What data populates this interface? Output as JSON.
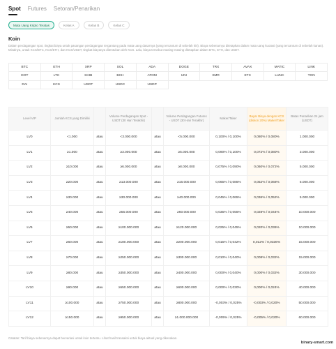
{
  "tabs": [
    "Spot",
    "Futures",
    "Setoran/Penarikan"
  ],
  "chips": [
    "Mata Uang Kripto Teratas",
    "Kelas A",
    "Kelas B",
    "Kelas C"
  ],
  "section_title": "Koin",
  "description": "Dalam perdagangan spot, tingkat biaya untuk pasangan perdagangan tergantung pada mata uang dasarnya (yang tercantum di sebelah kiri). Biaya sebenarnya ditetapkan dalam mata uang kuotasi (yang tercantum di sebelah kanan). Misalnya, untuk KCS/BTC, KCS/ETH, dan KCS/USDT, tingkat biayanya ditentukan oleh KCS. Lalu, biaya tersebut masing-masing ditetapkan dalam BTC, ETH, dan USDT.",
  "coins": [
    "BTC",
    "ETH",
    "XRP",
    "SOL",
    "ADA",
    "DOGE",
    "TRX",
    "AVAX",
    "MATIC",
    "LINK",
    "DOT",
    "LTC",
    "SHIB",
    "BCH",
    "ATOM",
    "UNI",
    "XMR",
    "ETC",
    "LUNC",
    "TON",
    "DAI",
    "KCS",
    "USDT",
    "USDC",
    "USDP"
  ],
  "table": {
    "headers": [
      "Level VIP",
      "Jumlah KCS yang Dimiliki",
      "",
      "Volume Perdagangan Spot - USDT (30 Hari Terakhir)",
      "",
      "Volume Perdagangan Futures - USDT (30 Hari Terakhir)",
      "Maker/Taker",
      "Bayar Biaya dengan KCS (diskon 20%) Maker/Taker",
      "Batas Penarikan 24 jam (USDT)"
    ],
    "rows": [
      [
        "LV0",
        "<1.000",
        "atau",
        "<3.000.000",
        "atau",
        "<5.000.000",
        "0,100% / 0,100%",
        "0,080% / 0,080%",
        "1.000.000"
      ],
      [
        "LV1",
        "≥1.000",
        "atau",
        "≥3.000.000",
        "atau",
        "≥5.000.000",
        "0,090% / 0,100%",
        "0,072% / 0,080%",
        "3.000.000"
      ],
      [
        "LV2",
        "≥10.000",
        "atau",
        "≥6.000.000",
        "atau",
        "≥8.000.000",
        "0,075% / 0,090%",
        "0,060% / 0,072%",
        "5.000.000"
      ],
      [
        "LV3",
        "≥20.000",
        "atau",
        "≥13.000.000",
        "atau",
        "≥16.000.000",
        "0,065% / 0,085%",
        "0,052% / 0,068%",
        "5.000.000"
      ],
      [
        "LV4",
        "≥30.000",
        "atau",
        "≥30.000.000",
        "atau",
        "≥40.000.000",
        "0,045% / 0,065%",
        "0,036% / 0,052%",
        "5.000.000"
      ],
      [
        "LV5",
        "≥40.000",
        "atau",
        "≥55.000.000",
        "atau",
        "≥60.000.000",
        "0,035% / 0,055%",
        "0,028% / 0,044%",
        "10.000.000"
      ],
      [
        "LV6",
        "≥50.000",
        "atau",
        "≥100.000.000",
        "atau",
        "≥120.000.000",
        "0,025% / 0,045%",
        "0,020% / 0,036%",
        "10.000.000"
      ],
      [
        "LV7",
        "≥60.000",
        "atau",
        "≥180.000.000",
        "atau",
        "≥200.000.000",
        "0,015% / 0,042%",
        "0,012% / 0,0336%",
        "15.000.000"
      ],
      [
        "LV8",
        "≥70.000",
        "atau",
        "≥250.000.000",
        "atau",
        "≥300.000.000",
        "0,010% / 0,040%",
        "0,008% / 0,032%",
        "15.000.000"
      ],
      [
        "LV9",
        "≥80.000",
        "atau",
        "≥350.000.000",
        "atau",
        "≥400.000.000",
        "0,000% / 0,040%",
        "0,000% / 0,032%",
        "30.000.000"
      ],
      [
        "LV10",
        "≥90.000",
        "atau",
        "≥550.000.000",
        "atau",
        "≥600.000.000",
        "0,000% / 0,030%",
        "0,000% / 0,024%",
        "40.000.000"
      ],
      [
        "LV11",
        "≥100.000",
        "atau",
        "≥750.000.000",
        "atau",
        "≥800.000.000",
        "-0,003% / 0,025%",
        "-0,003% / 0,020%",
        "50.000.000"
      ],
      [
        "LV12",
        "≥150.000",
        "atau",
        "≥950.000.000",
        "atau",
        "≥1.000.000.000",
        "-0,005% / 0,025%",
        "-0,005% / 0,020%",
        "60.000.000"
      ]
    ]
  },
  "footnote": "Catatan: Tarif biaya sebenarnya dapat bervariasi untuk koin tertentu. Lihat hasil transaksi untuk biaya aktual yang dikenakan.",
  "watermark": "binary-smart.com",
  "colors": {
    "accent": "#24ae8f",
    "highlight": "#f0a020"
  }
}
